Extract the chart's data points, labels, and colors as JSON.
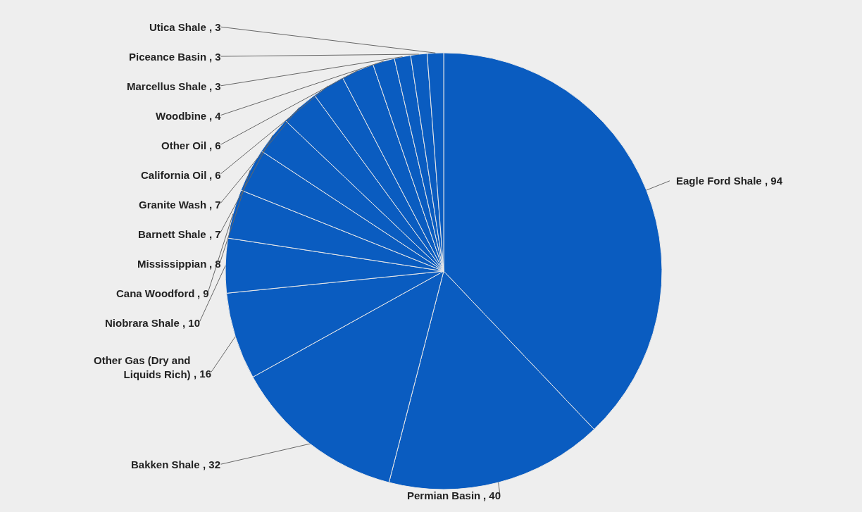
{
  "chart_data": {
    "type": "pie",
    "categories": [
      "Eagle Ford Shale",
      "Permian Basin",
      "Bakken Shale",
      "Other Gas (Dry and\nLiquids Rich)",
      "Niobrara Shale",
      "Cana Woodford",
      "Mississippian",
      "Barnett Shale",
      "Granite Wash",
      "California Oil",
      "Other Oil",
      "Woodbine",
      "Marcellus Shale",
      "Piceance Basin",
      "Utica Shale"
    ],
    "values": [
      94,
      40,
      32,
      16,
      10,
      9,
      8,
      7,
      7,
      6,
      6,
      4,
      3,
      3,
      3
    ],
    "color": "#0a5cc0",
    "value_labels": [
      ", 94",
      ", 40",
      ", 32",
      ", 16",
      ", 10",
      ", 9",
      ", 8",
      ", 7",
      ", 7",
      ", 6",
      ", 6",
      ", 4",
      ", 3",
      ", 3",
      ", 3"
    ],
    "legend": false
  }
}
